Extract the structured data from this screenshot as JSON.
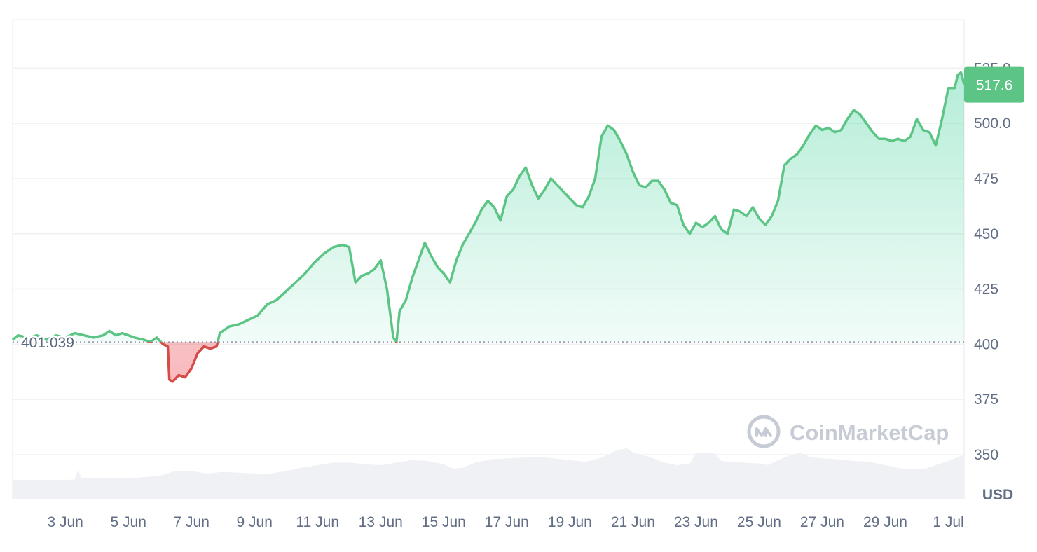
{
  "chart_data": {
    "type": "area",
    "currency_label": "USD",
    "watermark": "CoinMarketCap",
    "reference": {
      "value": 401.039,
      "label": "401.039"
    },
    "current": {
      "value": 517.6,
      "label": "517.6"
    },
    "ylim": [
      330,
      547
    ],
    "y_ticks": [
      {
        "value": 525,
        "label": "525.0"
      },
      {
        "value": 500,
        "label": "500.0"
      },
      {
        "value": 475,
        "label": "475"
      },
      {
        "value": 450,
        "label": "450"
      },
      {
        "value": 425,
        "label": "425"
      },
      {
        "value": 400,
        "label": "400"
      },
      {
        "value": 375,
        "label": "375"
      },
      {
        "value": 350,
        "label": "350"
      }
    ],
    "x_range": [
      1.33,
      31.5
    ],
    "x_ticks": [
      {
        "day": 3,
        "label": "3 Jun"
      },
      {
        "day": 5,
        "label": "5 Jun"
      },
      {
        "day": 7,
        "label": "7 Jun"
      },
      {
        "day": 9,
        "label": "9 Jun"
      },
      {
        "day": 11,
        "label": "11 Jun"
      },
      {
        "day": 13,
        "label": "13 Jun"
      },
      {
        "day": 15,
        "label": "15 Jun"
      },
      {
        "day": 17,
        "label": "17 Jun"
      },
      {
        "day": 19,
        "label": "19 Jun"
      },
      {
        "day": 21,
        "label": "21 Jun"
      },
      {
        "day": 23,
        "label": "23 Jun"
      },
      {
        "day": 25,
        "label": "25 Jun"
      },
      {
        "day": 27,
        "label": "27 Jun"
      },
      {
        "day": 29,
        "label": "29 Jun"
      },
      {
        "day": 31,
        "label": "1 Jul"
      }
    ],
    "colors": {
      "up": "#16c784",
      "up_line": "#5cc585",
      "down": "#ea3943",
      "down_line": "#d54b47",
      "volume": "#eff1f5",
      "grid": "#eef0f3"
    },
    "series": [
      {
        "values": [
          [
            1.33,
            402
          ],
          [
            1.5,
            404
          ],
          [
            1.8,
            403
          ],
          [
            2.1,
            404
          ],
          [
            2.4,
            402
          ],
          [
            2.7,
            404
          ],
          [
            3.0,
            403
          ],
          [
            3.3,
            405
          ],
          [
            3.6,
            404
          ],
          [
            3.9,
            403
          ],
          [
            4.2,
            404
          ],
          [
            4.4,
            406
          ],
          [
            4.6,
            404
          ],
          [
            4.8,
            405
          ],
          [
            5.0,
            404
          ],
          [
            5.2,
            403
          ],
          [
            5.5,
            402
          ],
          [
            5.7,
            401
          ],
          [
            5.9,
            403
          ],
          [
            6.1,
            400
          ],
          [
            6.25,
            399
          ],
          [
            6.3,
            384
          ],
          [
            6.4,
            383
          ],
          [
            6.6,
            386
          ],
          [
            6.8,
            385
          ],
          [
            7.0,
            389
          ],
          [
            7.2,
            396
          ],
          [
            7.4,
            399
          ],
          [
            7.6,
            398
          ],
          [
            7.8,
            399
          ],
          [
            7.9,
            405
          ],
          [
            8.2,
            408
          ],
          [
            8.5,
            409
          ],
          [
            8.8,
            411
          ],
          [
            9.1,
            413
          ],
          [
            9.4,
            418
          ],
          [
            9.7,
            420
          ],
          [
            10.0,
            424
          ],
          [
            10.3,
            428
          ],
          [
            10.6,
            432
          ],
          [
            10.9,
            437
          ],
          [
            11.2,
            441
          ],
          [
            11.5,
            444
          ],
          [
            11.8,
            445
          ],
          [
            12.0,
            444
          ],
          [
            12.2,
            428
          ],
          [
            12.4,
            431
          ],
          [
            12.6,
            432
          ],
          [
            12.8,
            434
          ],
          [
            13.0,
            438
          ],
          [
            13.2,
            425
          ],
          [
            13.4,
            403
          ],
          [
            13.5,
            401
          ],
          [
            13.6,
            415
          ],
          [
            13.8,
            420
          ],
          [
            14.0,
            430
          ],
          [
            14.2,
            438
          ],
          [
            14.4,
            446
          ],
          [
            14.6,
            440
          ],
          [
            14.8,
            435
          ],
          [
            15.0,
            432
          ],
          [
            15.2,
            428
          ],
          [
            15.4,
            438
          ],
          [
            15.6,
            445
          ],
          [
            15.8,
            450
          ],
          [
            16.0,
            455
          ],
          [
            16.2,
            461
          ],
          [
            16.4,
            465
          ],
          [
            16.6,
            462
          ],
          [
            16.8,
            456
          ],
          [
            17.0,
            467
          ],
          [
            17.2,
            470
          ],
          [
            17.4,
            476
          ],
          [
            17.6,
            480
          ],
          [
            17.8,
            472
          ],
          [
            18.0,
            466
          ],
          [
            18.2,
            470
          ],
          [
            18.4,
            475
          ],
          [
            18.6,
            472
          ],
          [
            18.8,
            469
          ],
          [
            19.0,
            466
          ],
          [
            19.2,
            463
          ],
          [
            19.4,
            462
          ],
          [
            19.6,
            467
          ],
          [
            19.8,
            475
          ],
          [
            20.0,
            494
          ],
          [
            20.2,
            499
          ],
          [
            20.4,
            497
          ],
          [
            20.6,
            492
          ],
          [
            20.8,
            486
          ],
          [
            21.0,
            478
          ],
          [
            21.2,
            472
          ],
          [
            21.4,
            471
          ],
          [
            21.6,
            474
          ],
          [
            21.8,
            474
          ],
          [
            22.0,
            470
          ],
          [
            22.2,
            464
          ],
          [
            22.4,
            463
          ],
          [
            22.6,
            454
          ],
          [
            22.8,
            450
          ],
          [
            23.0,
            455
          ],
          [
            23.2,
            453
          ],
          [
            23.4,
            455
          ],
          [
            23.6,
            458
          ],
          [
            23.8,
            452
          ],
          [
            24.0,
            450
          ],
          [
            24.2,
            461
          ],
          [
            24.4,
            460
          ],
          [
            24.6,
            458
          ],
          [
            24.8,
            462
          ],
          [
            25.0,
            457
          ],
          [
            25.2,
            454
          ],
          [
            25.4,
            458
          ],
          [
            25.6,
            465
          ],
          [
            25.8,
            481
          ],
          [
            26.0,
            484
          ],
          [
            26.2,
            486
          ],
          [
            26.4,
            490
          ],
          [
            26.6,
            495
          ],
          [
            26.8,
            499
          ],
          [
            27.0,
            497
          ],
          [
            27.2,
            498
          ],
          [
            27.4,
            496
          ],
          [
            27.6,
            497
          ],
          [
            27.8,
            502
          ],
          [
            28.0,
            506
          ],
          [
            28.2,
            504
          ],
          [
            28.4,
            500
          ],
          [
            28.6,
            496
          ],
          [
            28.8,
            493
          ],
          [
            29.0,
            493
          ],
          [
            29.2,
            492
          ],
          [
            29.4,
            493
          ],
          [
            29.6,
            492
          ],
          [
            29.8,
            494
          ],
          [
            30.0,
            502
          ],
          [
            30.2,
            497
          ],
          [
            30.4,
            496
          ],
          [
            30.6,
            490
          ],
          [
            30.8,
            502
          ],
          [
            31.0,
            516
          ],
          [
            31.2,
            516
          ],
          [
            31.3,
            522
          ],
          [
            31.4,
            523
          ],
          [
            31.5,
            517.6
          ]
        ]
      }
    ],
    "volume_series": [
      [
        1.33,
        0.45
      ],
      [
        2.0,
        0.45
      ],
      [
        3.0,
        0.45
      ],
      [
        3.3,
        0.46
      ],
      [
        3.4,
        0.7
      ],
      [
        3.5,
        0.5
      ],
      [
        4.0,
        0.5
      ],
      [
        5.0,
        0.48
      ],
      [
        6.0,
        0.55
      ],
      [
        6.5,
        0.66
      ],
      [
        7.0,
        0.66
      ],
      [
        7.5,
        0.6
      ],
      [
        8.0,
        0.64
      ],
      [
        8.5,
        0.62
      ],
      [
        9.0,
        0.6
      ],
      [
        9.5,
        0.6
      ],
      [
        10.0,
        0.66
      ],
      [
        10.5,
        0.74
      ],
      [
        11.0,
        0.8
      ],
      [
        11.5,
        0.86
      ],
      [
        12.0,
        0.86
      ],
      [
        12.3,
        0.84
      ],
      [
        12.5,
        0.82
      ],
      [
        13.0,
        0.8
      ],
      [
        13.5,
        0.86
      ],
      [
        14.0,
        0.92
      ],
      [
        14.5,
        0.9
      ],
      [
        15.0,
        0.82
      ],
      [
        15.3,
        0.72
      ],
      [
        15.6,
        0.74
      ],
      [
        16.0,
        0.86
      ],
      [
        16.5,
        0.94
      ],
      [
        17.0,
        0.96
      ],
      [
        17.5,
        0.98
      ],
      [
        18.0,
        1.0
      ],
      [
        18.5,
        0.96
      ],
      [
        19.0,
        0.92
      ],
      [
        19.5,
        0.88
      ],
      [
        20.0,
        0.98
      ],
      [
        20.5,
        1.16
      ],
      [
        20.8,
        1.2
      ],
      [
        21.0,
        1.1
      ],
      [
        21.5,
        1.0
      ],
      [
        22.0,
        0.86
      ],
      [
        22.4,
        0.8
      ],
      [
        22.8,
        0.84
      ],
      [
        23.0,
        1.1
      ],
      [
        23.3,
        1.1
      ],
      [
        23.6,
        1.08
      ],
      [
        23.8,
        0.9
      ],
      [
        24.0,
        0.88
      ],
      [
        24.5,
        0.86
      ],
      [
        25.0,
        0.84
      ],
      [
        25.3,
        0.8
      ],
      [
        25.6,
        0.92
      ],
      [
        26.0,
        1.04
      ],
      [
        26.3,
        1.1
      ],
      [
        26.6,
        1.0
      ],
      [
        27.0,
        0.96
      ],
      [
        27.5,
        0.94
      ],
      [
        28.0,
        0.9
      ],
      [
        28.5,
        0.88
      ],
      [
        29.0,
        0.8
      ],
      [
        29.5,
        0.72
      ],
      [
        30.0,
        0.7
      ],
      [
        30.3,
        0.72
      ],
      [
        30.6,
        0.8
      ],
      [
        31.0,
        0.9
      ],
      [
        31.3,
        1.0
      ],
      [
        31.5,
        1.04
      ]
    ]
  }
}
